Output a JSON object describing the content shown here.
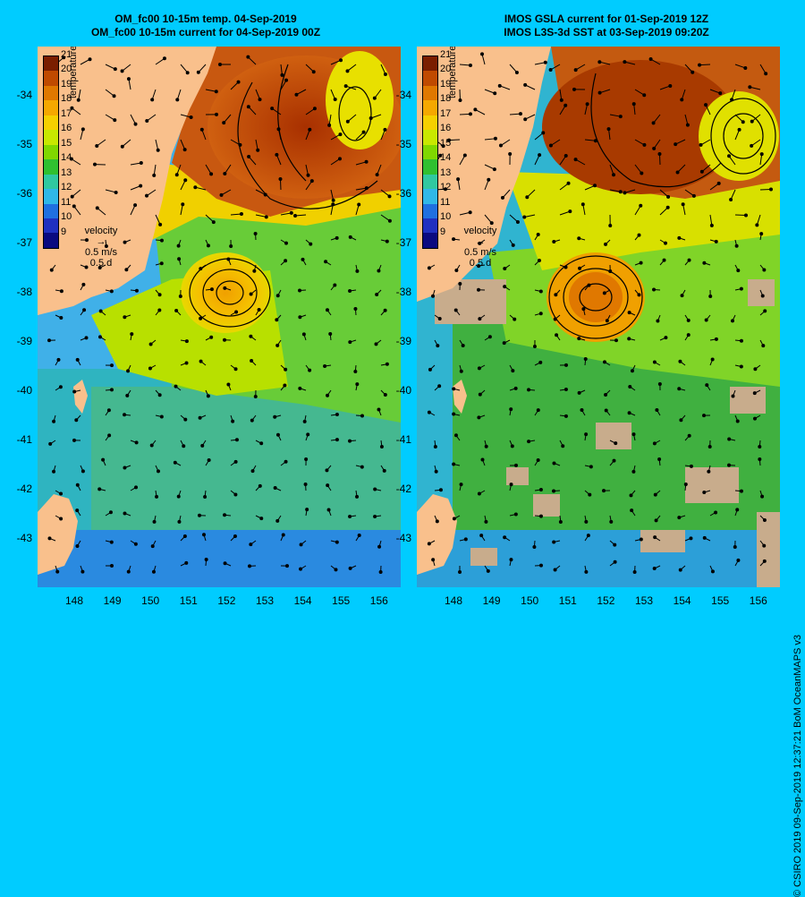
{
  "left_panel": {
    "title_line1": "OM_fc00 10-15m temp. 04-Sep-2019",
    "title_line2": "OM_fc00 10-15m current for 04-Sep-2019 00Z"
  },
  "right_panel": {
    "title_line1": "IMOS GSLA current for 01-Sep-2019 12Z",
    "title_line2": "IMOS L3S-3d SST at 03-Sep-2019 09:20Z"
  },
  "y_axis_labels": [
    "-34",
    "-35",
    "-36",
    "-37",
    "-38",
    "-39",
    "-40",
    "-41",
    "-42",
    "-43"
  ],
  "x_axis_labels": [
    "148",
    "149",
    "150",
    "151",
    "152",
    "153",
    "154",
    "155",
    "156"
  ],
  "colorbar": {
    "title": "temperature (°C)",
    "ticks": [
      "21",
      "20",
      "19",
      "18",
      "17",
      "16",
      "15",
      "14",
      "13",
      "12",
      "11",
      "10",
      "9"
    ],
    "colors": [
      "#7a1e00",
      "#c04a00",
      "#e07800",
      "#f5a800",
      "#f5d000",
      "#c8e800",
      "#80d800",
      "#30c030",
      "#30c8a0",
      "#30b8e8",
      "#2070e0",
      "#2030c0",
      "#0a0a80"
    ]
  },
  "velocity_legend": {
    "title": "velocity",
    "speed": "0.5 m/s",
    "duration": "0.5 d"
  },
  "credit": "© CSIRO 2019   09-Sep-2019 12:37:21 BoM OceanMAPS v3",
  "colors": {
    "background": "#00ccff",
    "land": "#f9c08c",
    "no_data": "#c8ac8c"
  }
}
